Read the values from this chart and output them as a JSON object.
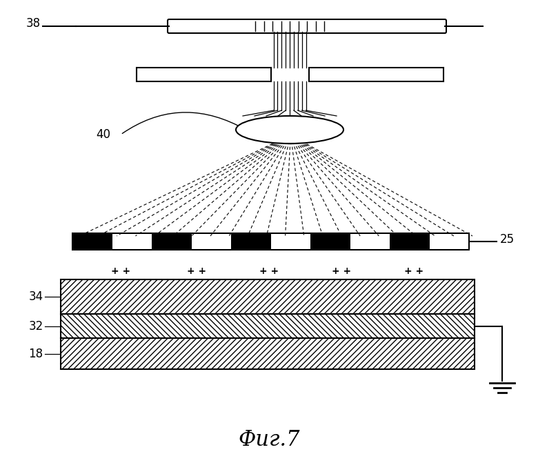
{
  "title": "Фиг.7",
  "bg_color": "#ffffff",
  "line_color": "#000000",
  "label_38": "38",
  "label_40": "40",
  "label_25": "25",
  "label_34": "34",
  "label_32": "32",
  "label_18": "18"
}
